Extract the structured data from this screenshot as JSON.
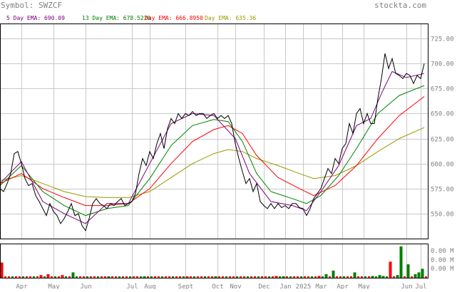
{
  "header": {
    "symbol_text": "Symbol: SWZCF",
    "brand_text": "stockta.com"
  },
  "legend": [
    {
      "text": "5 Day EMA: 690.09",
      "color": "#800080"
    },
    {
      "text": "13 Day EMA: 678.5220",
      "color": "#008000"
    },
    {
      "text": "Day EMA: 666.8950",
      "color": "#ff0000"
    },
    {
      "text": "Day EMA: 635.36",
      "color": "#999900"
    }
  ],
  "colors": {
    "price": "#000000",
    "grid": "#c8c8c8",
    "axis_text": "#808080",
    "vol_up": "#008000",
    "vol_down": "#ff0000"
  },
  "chart_data": [
    {
      "type": "line",
      "title": "",
      "xlabel": "",
      "ylabel": "",
      "ylim": [
        525,
        740
      ],
      "y_ticks": [
        725,
        700,
        675,
        650,
        625,
        600,
        575,
        550
      ],
      "y_tick_labels": [
        "725.00",
        "700.00",
        "675.00",
        "650.00",
        "625.00",
        "600.00",
        "575.00",
        "550.00"
      ],
      "x_index_range": [
        0,
        120
      ],
      "x_ticks": [
        {
          "label": "Apr",
          "i": 6
        },
        {
          "label": "May",
          "i": 15
        },
        {
          "label": "Jun",
          "i": 24
        },
        {
          "label": "Jul",
          "i": 37
        },
        {
          "label": "Aug",
          "i": 42
        },
        {
          "label": "Sept",
          "i": 52
        },
        {
          "label": "Oct",
          "i": 61
        },
        {
          "label": "Nov",
          "i": 66
        },
        {
          "label": "Dec",
          "i": 74
        },
        {
          "label": "Jan",
          "i": 80
        },
        {
          "label": "2025",
          "i": 85
        },
        {
          "label": "Mar",
          "i": 90
        },
        {
          "label": "Apr",
          "i": 96
        },
        {
          "label": "May",
          "i": 102
        },
        {
          "label": "Jun",
          "i": 114
        },
        {
          "label": "Jul",
          "i": 118
        }
      ],
      "series": [
        {
          "role": "price",
          "points": [
            [
              0,
              575
            ],
            [
              1,
              572
            ],
            [
              2,
              580
            ],
            [
              3,
              590
            ],
            [
              4,
              610
            ],
            [
              5,
              612
            ],
            [
              6,
              600
            ],
            [
              7,
              585
            ],
            [
              8,
              578
            ],
            [
              9,
              580
            ],
            [
              10,
              568
            ],
            [
              11,
              562
            ],
            [
              12,
              555
            ],
            [
              13,
              548
            ],
            [
              14,
              560
            ],
            [
              15,
              552
            ],
            [
              16,
              548
            ],
            [
              17,
              540
            ],
            [
              18,
              545
            ],
            [
              19,
              552
            ],
            [
              20,
              560
            ],
            [
              21,
              548
            ],
            [
              22,
              550
            ],
            [
              23,
              538
            ],
            [
              24,
              533
            ],
            [
              25,
              545
            ],
            [
              26,
              560
            ],
            [
              27,
              565
            ],
            [
              28,
              560
            ],
            [
              29,
              558
            ],
            [
              30,
              555
            ],
            [
              31,
              560
            ],
            [
              32,
              558
            ],
            [
              33,
              562
            ],
            [
              34,
              565
            ],
            [
              35,
              558
            ],
            [
              36,
              560
            ],
            [
              37,
              562
            ],
            [
              38,
              570
            ],
            [
              39,
              590
            ],
            [
              40,
              605
            ],
            [
              41,
              598
            ],
            [
              42,
              612
            ],
            [
              43,
              605
            ],
            [
              44,
              620
            ],
            [
              45,
              630
            ],
            [
              46,
              615
            ],
            [
              47,
              635
            ],
            [
              48,
              645
            ],
            [
              49,
              640
            ],
            [
              50,
              650
            ],
            [
              51,
              645
            ],
            [
              52,
              650
            ],
            [
              53,
              648
            ],
            [
              54,
              652
            ],
            [
              55,
              648
            ],
            [
              56,
              650
            ],
            [
              57,
              650
            ],
            [
              58,
              645
            ],
            [
              59,
              648
            ],
            [
              60,
              650
            ],
            [
              61,
              645
            ],
            [
              62,
              648
            ],
            [
              63,
              645
            ],
            [
              64,
              648
            ],
            [
              65,
              640
            ],
            [
              66,
              620
            ],
            [
              67,
              605
            ],
            [
              68,
              592
            ],
            [
              69,
              580
            ],
            [
              70,
              585
            ],
            [
              71,
              572
            ],
            [
              72,
              580
            ],
            [
              73,
              562
            ],
            [
              74,
              558
            ],
            [
              75,
              555
            ],
            [
              76,
              560
            ],
            [
              77,
              555
            ],
            [
              78,
              560
            ],
            [
              79,
              556
            ],
            [
              80,
              558
            ],
            [
              81,
              555
            ],
            [
              82,
              560
            ],
            [
              83,
              560
            ],
            [
              84,
              556
            ],
            [
              85,
              555
            ],
            [
              86,
              548
            ],
            [
              87,
              555
            ],
            [
              88,
              565
            ],
            [
              89,
              570
            ],
            [
              90,
              575
            ],
            [
              91,
              585
            ],
            [
              92,
              595
            ],
            [
              93,
              590
            ],
            [
              94,
              605
            ],
            [
              95,
              600
            ],
            [
              96,
              615
            ],
            [
              97,
              620
            ],
            [
              98,
              640
            ],
            [
              99,
              630
            ],
            [
              100,
              650
            ],
            [
              101,
              655
            ],
            [
              102,
              640
            ],
            [
              103,
              650
            ],
            [
              104,
              640
            ],
            [
              105,
              640
            ],
            [
              106,
              665
            ],
            [
              107,
              685
            ],
            [
              108,
              710
            ],
            [
              109,
              695
            ],
            [
              110,
              705
            ],
            [
              111,
              690
            ],
            [
              112,
              688
            ],
            [
              113,
              685
            ],
            [
              114,
              690
            ],
            [
              115,
              688
            ],
            [
              116,
              680
            ],
            [
              117,
              688
            ],
            [
              118,
              685
            ],
            [
              119,
              700
            ]
          ]
        },
        {
          "role": "ema5",
          "points": [
            [
              0,
              580
            ],
            [
              6,
              602
            ],
            [
              12,
              562
            ],
            [
              18,
              550
            ],
            [
              24,
              540
            ],
            [
              30,
              560
            ],
            [
              36,
              560
            ],
            [
              42,
              600
            ],
            [
              48,
              640
            ],
            [
              54,
              650
            ],
            [
              60,
              648
            ],
            [
              66,
              625
            ],
            [
              70,
              590
            ],
            [
              76,
              562
            ],
            [
              82,
              558
            ],
            [
              86,
              553
            ],
            [
              90,
              572
            ],
            [
              95,
              598
            ],
            [
              100,
              638
            ],
            [
              104,
              645
            ],
            [
              107,
              670
            ],
            [
              110,
              692
            ],
            [
              114,
              686
            ],
            [
              119,
              690
            ]
          ]
        },
        {
          "role": "ema13",
          "points": [
            [
              0,
              578
            ],
            [
              6,
              598
            ],
            [
              12,
              572
            ],
            [
              18,
              558
            ],
            [
              24,
              548
            ],
            [
              30,
              555
            ],
            [
              36,
              558
            ],
            [
              42,
              585
            ],
            [
              48,
              618
            ],
            [
              54,
              638
            ],
            [
              60,
              644
            ],
            [
              64,
              642
            ],
            [
              68,
              622
            ],
            [
              72,
              590
            ],
            [
              76,
              572
            ],
            [
              82,
              565
            ],
            [
              86,
              560
            ],
            [
              90,
              568
            ],
            [
              95,
              588
            ],
            [
              100,
              615
            ],
            [
              106,
              650
            ],
            [
              112,
              668
            ],
            [
              119,
              678
            ]
          ]
        },
        {
          "role": "ema26",
          "points": [
            [
              0,
              580
            ],
            [
              6,
              590
            ],
            [
              12,
              575
            ],
            [
              18,
              566
            ],
            [
              24,
              558
            ],
            [
              30,
              558
            ],
            [
              36,
              560
            ],
            [
              42,
              575
            ],
            [
              48,
              600
            ],
            [
              54,
              622
            ],
            [
              60,
              634
            ],
            [
              64,
              638
            ],
            [
              68,
              630
            ],
            [
              72,
              608
            ],
            [
              78,
              586
            ],
            [
              84,
              575
            ],
            [
              88,
              568
            ],
            [
              94,
              578
            ],
            [
              100,
              598
            ],
            [
              106,
              625
            ],
            [
              112,
              648
            ],
            [
              119,
              667
            ]
          ]
        },
        {
          "role": "ema50",
          "points": [
            [
              0,
              583
            ],
            [
              6,
              588
            ],
            [
              12,
              580
            ],
            [
              18,
              572
            ],
            [
              24,
              567
            ],
            [
              30,
              566
            ],
            [
              36,
              566
            ],
            [
              42,
              572
            ],
            [
              48,
              586
            ],
            [
              54,
              600
            ],
            [
              60,
              610
            ],
            [
              64,
              614
            ],
            [
              68,
              612
            ],
            [
              72,
              605
            ],
            [
              78,
              598
            ],
            [
              84,
              590
            ],
            [
              88,
              585
            ],
            [
              94,
              588
            ],
            [
              100,
              598
            ],
            [
              106,
              612
            ],
            [
              112,
              625
            ],
            [
              119,
              636
            ]
          ]
        }
      ]
    },
    {
      "type": "bar",
      "title": "volume",
      "y_tick_labels": [
        "0.00 M",
        "0.00 M",
        "0.00 M"
      ],
      "bars": [
        {
          "i": 0,
          "v": 17,
          "up": false
        },
        {
          "i": 11,
          "v": 3,
          "up": false
        },
        {
          "i": 13,
          "v": 4,
          "up": false
        },
        {
          "i": 17,
          "v": 3,
          "up": false
        },
        {
          "i": 20,
          "v": 6,
          "up": true
        },
        {
          "i": 30,
          "v": 1,
          "up": true
        },
        {
          "i": 40,
          "v": 1,
          "up": true
        },
        {
          "i": 52,
          "v": 1,
          "up": false
        },
        {
          "i": 60,
          "v": 1,
          "up": true
        },
        {
          "i": 77,
          "v": 2,
          "up": false
        },
        {
          "i": 79,
          "v": 1,
          "up": true
        },
        {
          "i": 89,
          "v": 2,
          "up": false
        },
        {
          "i": 91,
          "v": 4,
          "up": true
        },
        {
          "i": 93,
          "v": 8,
          "up": true
        },
        {
          "i": 99,
          "v": 6,
          "up": true
        },
        {
          "i": 104,
          "v": 2,
          "up": true
        },
        {
          "i": 106,
          "v": 3,
          "up": true
        },
        {
          "i": 107,
          "v": 2,
          "up": true
        },
        {
          "i": 109,
          "v": 18,
          "up": false
        },
        {
          "i": 111,
          "v": 3,
          "up": true
        },
        {
          "i": 112,
          "v": 35,
          "up": true
        },
        {
          "i": 114,
          "v": 15,
          "up": true
        },
        {
          "i": 116,
          "v": 4,
          "up": true
        },
        {
          "i": 117,
          "v": 6,
          "up": true
        },
        {
          "i": 118,
          "v": 10,
          "up": true
        }
      ]
    }
  ]
}
